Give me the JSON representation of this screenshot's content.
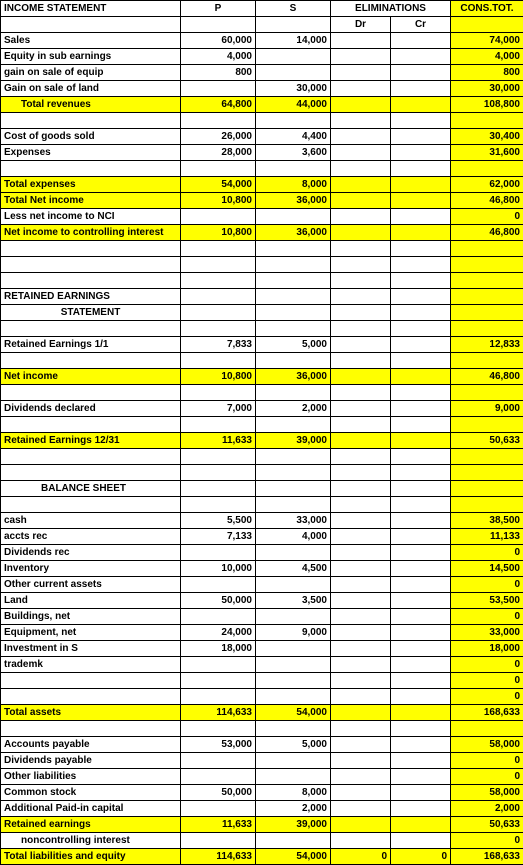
{
  "header": {
    "title": "INCOME STATEMENT",
    "P": "P",
    "S": "S",
    "elim": "ELIMINATIONS",
    "dr": "Dr",
    "cr": "Cr",
    "cons": "CONS.TOT."
  },
  "statement": "STATEMENT",
  "retained_header": "RETAINED EARNINGS",
  "balance_header": "BALANCE SHEET",
  "colors": {
    "hl": "#ffff00"
  },
  "rows": [
    {
      "label": "Sales",
      "p": "60,000",
      "s": "14,000",
      "t": "74,000"
    },
    {
      "label": "Equity in sub earnings",
      "p": "4,000",
      "s": "",
      "t": "4,000"
    },
    {
      "label": "gain on sale of equip",
      "p": "800",
      "s": "",
      "t": "800"
    },
    {
      "label": "Gain on sale of land",
      "p": "",
      "s": "30,000",
      "t": "30,000"
    },
    {
      "label": "Total revenues",
      "p": "64,800",
      "s": "44,000",
      "t": "108,800",
      "hl": true,
      "indent": 1
    },
    {
      "blank": true
    },
    {
      "label": "Cost of goods sold",
      "p": "26,000",
      "s": "4,400",
      "t": "30,400"
    },
    {
      "label": "Expenses",
      "p": "28,000",
      "s": "3,600",
      "t": "31,600"
    },
    {
      "blank": true
    },
    {
      "label": "Total expenses",
      "p": "54,000",
      "s": "8,000",
      "t": "62,000",
      "hl": true
    },
    {
      "label": "Total Net income",
      "p": "10,800",
      "s": "36,000",
      "t": "46,800",
      "hl": true
    },
    {
      "label": "Less net income to NCI",
      "p": "",
      "s": "",
      "t": "0"
    },
    {
      "label": "Net income to controlling interest",
      "p": "10,800",
      "s": "36,000",
      "t": "46,800",
      "hl": true
    },
    {
      "blank": true
    },
    {
      "blank": true
    },
    {
      "blank": true
    },
    {
      "section": "RETAINED EARNINGS"
    },
    {
      "statement": true
    },
    {
      "blank": true
    },
    {
      "label": "Retained Earnings 1/1",
      "p": "7,833",
      "s": "5,000",
      "t": "12,833"
    },
    {
      "blank": true
    },
    {
      "label": "Net income",
      "p": "10,800",
      "s": "36,000",
      "t": "46,800",
      "hl": true
    },
    {
      "blank": true
    },
    {
      "label": "Dividends declared",
      "p": "7,000",
      "s": "2,000",
      "t": "9,000"
    },
    {
      "blank": true
    },
    {
      "label": "Retained Earnings 12/31",
      "p": "11,633",
      "s": "39,000",
      "t": "50,633",
      "hl": true
    },
    {
      "blank": true
    },
    {
      "blank": true
    },
    {
      "balance": true
    },
    {
      "blank": true
    },
    {
      "label": "cash",
      "p": "5,500",
      "s": "33,000",
      "t": "38,500"
    },
    {
      "label": "accts rec",
      "p": "7,133",
      "s": "4,000",
      "t": "11,133"
    },
    {
      "label": "Dividends rec",
      "p": "",
      "s": "",
      "t": "0"
    },
    {
      "label": "Inventory",
      "p": "10,000",
      "s": "4,500",
      "t": "14,500"
    },
    {
      "label": "Other current assets",
      "p": "",
      "s": "",
      "t": "0"
    },
    {
      "label": "Land",
      "p": "50,000",
      "s": "3,500",
      "t": "53,500"
    },
    {
      "label": "Buildings, net",
      "p": "",
      "s": "",
      "t": "0"
    },
    {
      "label": "Equipment, net",
      "p": "24,000",
      "s": "9,000",
      "t": "33,000"
    },
    {
      "label": "Investment in S",
      "p": "18,000",
      "s": "",
      "t": "18,000"
    },
    {
      "label": "trademk",
      "p": "",
      "s": "",
      "t": "0"
    },
    {
      "label": "",
      "p": "",
      "s": "",
      "t": "0"
    },
    {
      "label": "",
      "p": "",
      "s": "",
      "t": "0"
    },
    {
      "label": "Total assets",
      "p": "114,633",
      "s": "54,000",
      "t": "168,633",
      "hl": true
    },
    {
      "blank": true
    },
    {
      "label": "Accounts payable",
      "p": "53,000",
      "s": "5,000",
      "t": "58,000"
    },
    {
      "label": "Dividends payable",
      "p": "",
      "s": "",
      "t": "0"
    },
    {
      "label": "Other liabilities",
      "p": "",
      "s": "",
      "t": "0"
    },
    {
      "label": "Common stock",
      "p": "50,000",
      "s": "8,000",
      "t": "58,000"
    },
    {
      "label": "Additional Paid-in capital",
      "p": "",
      "s": "2,000",
      "t": "2,000"
    },
    {
      "label": "Retained earnings",
      "p": "11,633",
      "s": "39,000",
      "t": "50,633",
      "hl": true
    },
    {
      "label": "noncontrolling interest",
      "p": "",
      "s": "",
      "t": "0",
      "indent": 1
    },
    {
      "label": "Total liabilities and equity",
      "p": "114,633",
      "s": "54,000",
      "dr": "0",
      "cr": "0",
      "t": "168,633",
      "hl": true
    }
  ]
}
